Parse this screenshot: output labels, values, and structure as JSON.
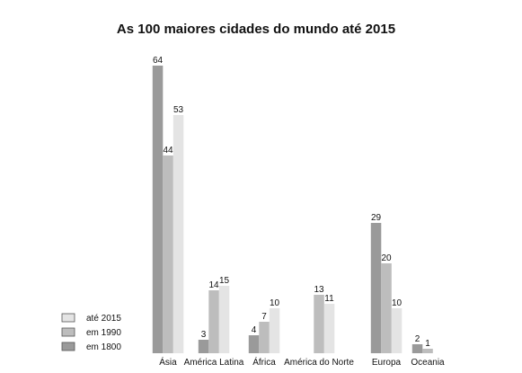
{
  "chart_data": {
    "type": "bar",
    "title": "As 100 maiores cidades do mundo até 2015",
    "categories": [
      "Ásia",
      "América Latina",
      "África",
      "América do Norte",
      "Europa",
      "Oceania"
    ],
    "series": [
      {
        "name": "em 1800",
        "color": "#9a9a9a",
        "values": [
          64,
          3,
          4,
          null,
          29,
          2
        ]
      },
      {
        "name": "em 1990",
        "color": "#bdbdbd",
        "values": [
          44,
          14,
          7,
          13,
          20,
          1
        ]
      },
      {
        "name": "até 2015",
        "color": "#e4e4e4",
        "values": [
          53,
          15,
          10,
          11,
          10,
          null
        ]
      }
    ],
    "legend_order": [
      "até 2015",
      "em 1990",
      "em 1800"
    ],
    "legend_position": "bottom-left",
    "ylim": [
      0,
      64
    ],
    "grid": false,
    "xlabel": "",
    "ylabel": ""
  }
}
